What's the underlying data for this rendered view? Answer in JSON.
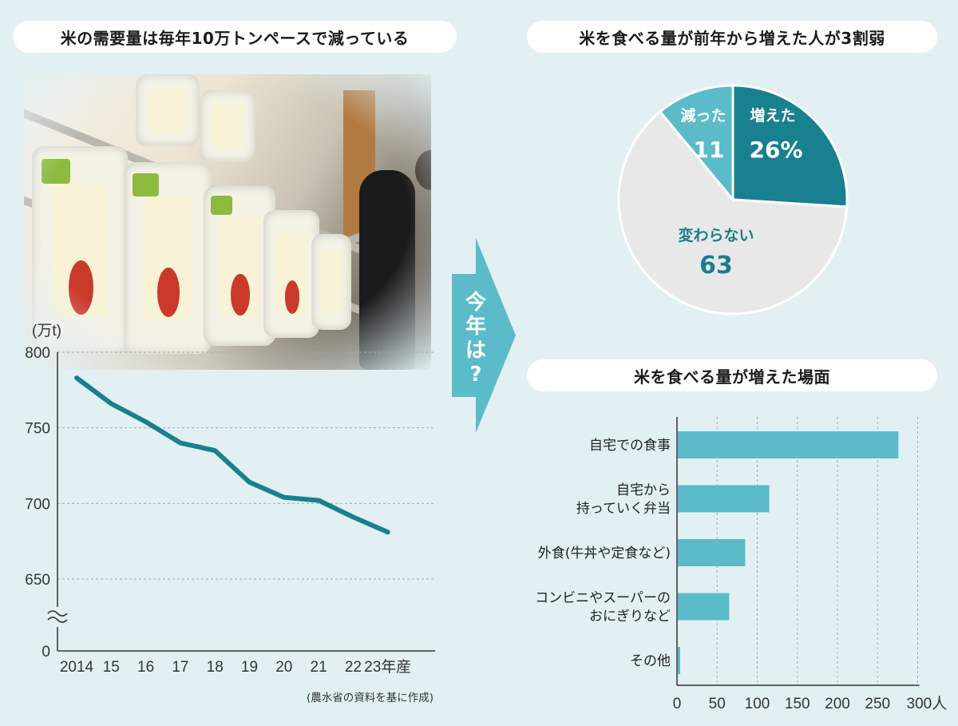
{
  "colors": {
    "background": "#e2f0f3",
    "line": "#18808f",
    "pie_increase": "#18808f",
    "pie_decrease": "#5bbbc8",
    "pie_same": "#e8e8e8",
    "bar": "#5bbbc8",
    "arrow": "#5bbbc8"
  },
  "left_title": "米の需要量は毎年10万トンペースで減っている",
  "arrow_text": [
    "今",
    "年",
    "は",
    "?"
  ],
  "pie_title": "米を食べる量が前年から増えた人が3割弱",
  "bar_title": "米を食べる量が増えた場面",
  "source_note": "(農水省の資料を基に作成)",
  "chart_data": [
    {
      "type": "line",
      "unit_label": "(万t)",
      "x": [
        "2014",
        "15",
        "16",
        "17",
        "18",
        "19",
        "20",
        "21",
        "22",
        "23年産"
      ],
      "values": [
        783,
        766,
        754,
        740,
        735,
        714,
        704,
        702,
        691,
        681
      ],
      "yticks": [
        "800",
        "750",
        "700",
        "650",
        "0"
      ],
      "ylim": [
        650,
        800
      ],
      "axis_break": true,
      "grid": true
    },
    {
      "type": "pie",
      "slices": [
        {
          "label": "増えた",
          "value": 26,
          "display": "26%",
          "color": "#18808f"
        },
        {
          "label": "変わらない",
          "value": 63,
          "display": "63",
          "color": "#e8e8e8"
        },
        {
          "label": "減った",
          "value": 11,
          "display": "11",
          "color": "#5bbbc8"
        }
      ]
    },
    {
      "type": "bar",
      "orientation": "horizontal",
      "categories": [
        [
          "自宅での食事"
        ],
        [
          "自宅から",
          "持っていく弁当"
        ],
        [
          "外食(牛丼や定食など)"
        ],
        [
          "コンビニやスーパーの",
          "おにぎりなど"
        ],
        [
          "その他"
        ]
      ],
      "values": [
        275,
        114,
        84,
        64,
        3
      ],
      "xticks": [
        "0",
        "50",
        "100",
        "150",
        "200",
        "250",
        "300人"
      ],
      "xlim": [
        0,
        300
      ],
      "grid": true
    }
  ]
}
